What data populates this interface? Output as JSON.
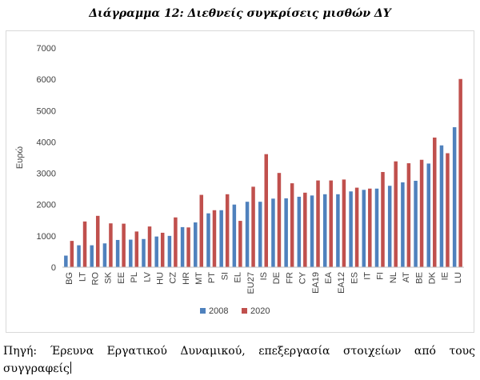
{
  "title": "Διάγραμμα 12: Διεθνείς συγκρίσεις μισθών ΔΥ",
  "source_text": "Πηγή: Έρευνα Εργατικού Δυναμικού, επεξεργασία στοιχείων από τους συγγραφείς",
  "colors": {
    "s2008": "#4f81bd",
    "s2020": "#c0504d",
    "axis": "#bfbfbf",
    "grid": "#d9d9d9",
    "text": "#404040"
  },
  "chart_data": {
    "type": "bar",
    "title": "",
    "xlabel": "",
    "ylabel": "Ευρώ",
    "ylim": [
      0,
      7000
    ],
    "yticks": [
      0,
      1000,
      2000,
      3000,
      4000,
      5000,
      6000,
      7000
    ],
    "grid": false,
    "legend_position": "bottom",
    "categories": [
      "BG",
      "LT",
      "RO",
      "SK",
      "EE",
      "PL",
      "LV",
      "HU",
      "CZ",
      "HR",
      "MT",
      "PT",
      "SI",
      "EL",
      "EU27",
      "IS",
      "DE",
      "FR",
      "CY",
      "EA19",
      "EA",
      "EA12",
      "ES",
      "IT",
      "FI",
      "NL",
      "AT",
      "BE",
      "DK",
      "IE",
      "LU"
    ],
    "series": [
      {
        "name": "2008",
        "values": [
          370,
          700,
          700,
          760,
          870,
          880,
          900,
          980,
          1000,
          1280,
          1430,
          1720,
          1820,
          2000,
          2090,
          2090,
          2190,
          2200,
          2250,
          2290,
          2330,
          2330,
          2420,
          2470,
          2510,
          2600,
          2710,
          2760,
          3310,
          3890,
          4470
        ]
      },
      {
        "name": "2020",
        "values": [
          840,
          1460,
          1640,
          1400,
          1390,
          1140,
          1300,
          1100,
          1590,
          1270,
          2310,
          1820,
          2330,
          1480,
          2570,
          3610,
          3010,
          2680,
          2380,
          2770,
          2770,
          2800,
          2540,
          2510,
          3040,
          3380,
          3320,
          3430,
          4140,
          3640,
          6010
        ]
      }
    ]
  }
}
